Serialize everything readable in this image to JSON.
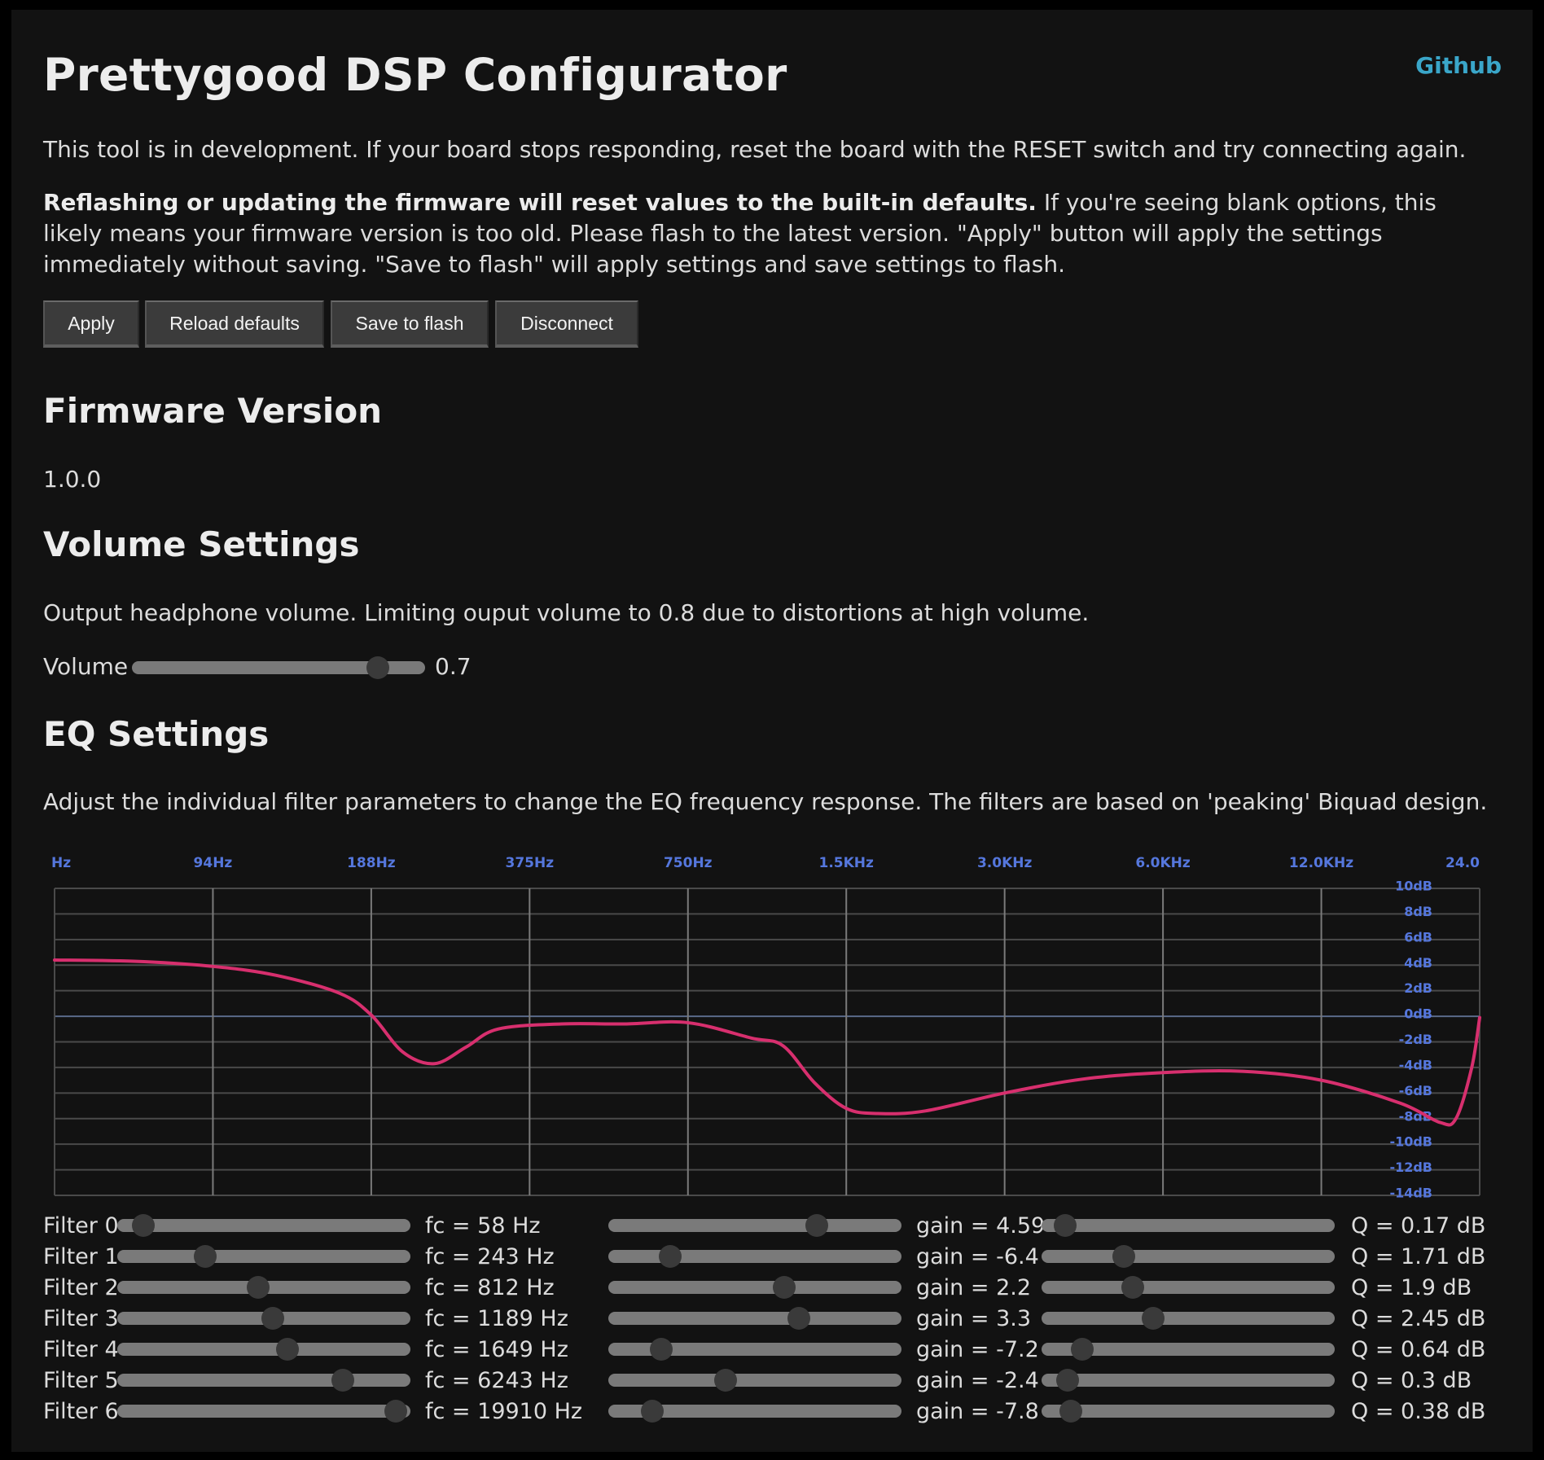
{
  "header": {
    "title": "Prettygood DSP Configurator",
    "github_label": "Github"
  },
  "intro": "This tool is in development. If your board stops responding, reset the board with the RESET switch and try connecting again.",
  "warning": {
    "bold": "Reflashing or updating the firmware will reset values to the built-in defaults.",
    "rest": " If you're seeing blank options, this likely means your firmware version is too old. Please flash to the latest version. \"Apply\" button will apply the settings immediately without saving. \"Save to flash\" will apply settings and save settings to flash."
  },
  "toolbar": {
    "apply": "Apply",
    "reload": "Reload defaults",
    "save": "Save to flash",
    "disconnect": "Disconnect"
  },
  "firmware": {
    "heading": "Firmware Version",
    "version": "1.0.0"
  },
  "volume": {
    "heading": "Volume Settings",
    "description": "Output headphone volume. Limiting ouput volume to 0.8 due to distortions at high volume.",
    "label": "Volume",
    "value": "0.7",
    "level": 0.84
  },
  "eq": {
    "heading": "EQ Settings",
    "description": "Adjust the individual filter parameters to change the EQ frequency response. The filters are based on 'peaking' Biquad design.",
    "filters": [
      {
        "label": "Filter 0",
        "fc": "fc = 58 Hz",
        "gain": "gain = 4.59",
        "q": "Q = 0.17 dB",
        "fc_pos": 0.09,
        "gain_pos": 0.71,
        "q_pos": 0.08
      },
      {
        "label": "Filter 1",
        "fc": "fc = 243 Hz",
        "gain": "gain = -6.4",
        "q": "Q = 1.71 dB",
        "fc_pos": 0.3,
        "gain_pos": 0.21,
        "q_pos": 0.28
      },
      {
        "label": "Filter 2",
        "fc": "fc = 812 Hz",
        "gain": "gain = 2.2",
        "q": "Q = 1.9 dB",
        "fc_pos": 0.48,
        "gain_pos": 0.6,
        "q_pos": 0.31
      },
      {
        "label": "Filter 3",
        "fc": "fc = 1189 Hz",
        "gain": "gain = 3.3",
        "q": "Q = 2.45 dB",
        "fc_pos": 0.53,
        "gain_pos": 0.65,
        "q_pos": 0.38
      },
      {
        "label": "Filter 4",
        "fc": "fc = 1649 Hz",
        "gain": "gain = -7.2",
        "q": "Q = 0.64 dB",
        "fc_pos": 0.58,
        "gain_pos": 0.18,
        "q_pos": 0.14
      },
      {
        "label": "Filter 5",
        "fc": "fc = 6243 Hz",
        "gain": "gain = -2.4",
        "q": "Q = 0.3 dB",
        "fc_pos": 0.77,
        "gain_pos": 0.4,
        "q_pos": 0.09
      },
      {
        "label": "Filter 6",
        "fc": "fc = 19910 Hz",
        "gain": "gain = -7.8",
        "q": "Q = 0.38 dB",
        "fc_pos": 0.95,
        "gain_pos": 0.15,
        "q_pos": 0.1
      }
    ]
  },
  "chart_data": {
    "type": "line",
    "x_tick_labels": [
      "Hz",
      "94Hz",
      "188Hz",
      "375Hz",
      "750Hz",
      "1.5KHz",
      "3.0KHz",
      "6.0KHz",
      "12.0KHz",
      "24.0"
    ],
    "y_tick_labels": [
      "10dB",
      "8dB",
      "6dB",
      "4dB",
      "2dB",
      "0dB",
      "-2dB",
      "-4dB",
      "-6dB",
      "-8dB",
      "-10dB",
      "-12dB",
      "-14dB"
    ],
    "ylim": [
      -14,
      10
    ],
    "x_scale": "log2 octaves",
    "curve_color": "#d72f6e",
    "label_color": "#5577dd",
    "grid": true,
    "series": [
      {
        "x": [
          0,
          0.5,
          1.0,
          1.4,
          1.8,
          2.0,
          2.2,
          2.4,
          2.6,
          2.8,
          3.2,
          3.6,
          4.0,
          4.4,
          4.6,
          4.8,
          5.0,
          5.2,
          5.5,
          6.0,
          6.5,
          7.0,
          7.5,
          8.0,
          8.5,
          8.75,
          8.85,
          8.95,
          9.0
        ],
        "y": [
          4.4,
          4.3,
          3.9,
          3.2,
          1.8,
          0.1,
          -2.8,
          -3.7,
          -2.4,
          -1.0,
          -0.6,
          -0.6,
          -0.5,
          -1.7,
          -2.3,
          -5.2,
          -7.2,
          -7.6,
          -7.4,
          -6.0,
          -4.9,
          -4.4,
          -4.3,
          -5.0,
          -6.8,
          -8.3,
          -8.0,
          -4.0,
          -0.1
        ]
      }
    ]
  }
}
